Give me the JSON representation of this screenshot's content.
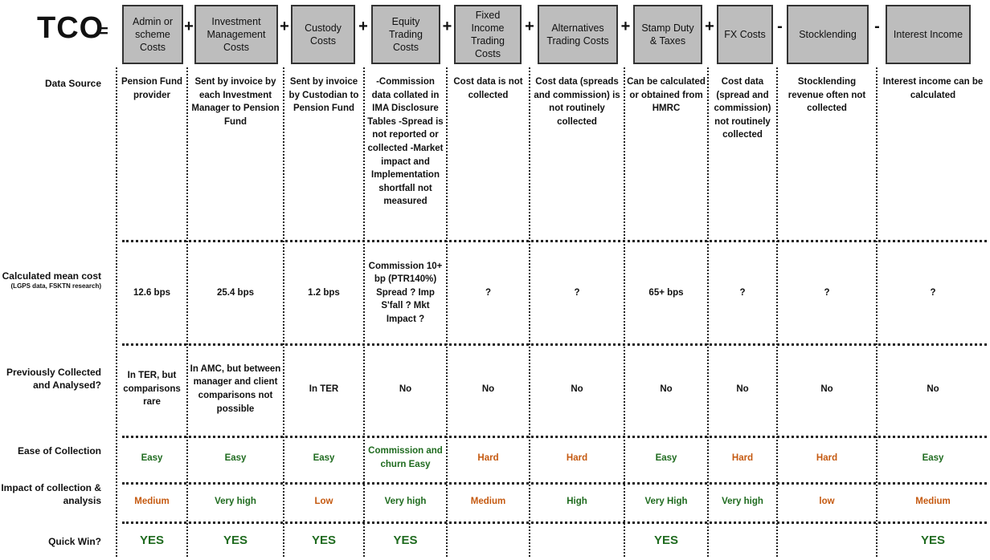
{
  "title": "TCO",
  "equals": "=",
  "columns": [
    {
      "header": "Admin or scheme Costs",
      "op_after": "+",
      "data_source": "Pension Fund provider",
      "mean_cost": "12.6 bps",
      "previously": "In TER, but comparisons rare",
      "ease": "Easy",
      "ease_color": "#1f6b1f",
      "impact": "Medium",
      "impact_color": "#c55a11",
      "quick_win": "YES"
    },
    {
      "header": "Investment Management Costs",
      "op_after": "+",
      "data_source": "Sent by invoice by each Investment Manager to Pension Fund",
      "mean_cost": "25.4 bps",
      "previously": "In AMC, but between manager and client comparisons not possible",
      "ease": "Easy",
      "ease_color": "#1f6b1f",
      "impact": "Very high",
      "impact_color": "#1f6b1f",
      "quick_win": "YES"
    },
    {
      "header": "Custody Costs",
      "op_after": "+",
      "data_source": "Sent by invoice by Custodian to Pension Fund",
      "mean_cost": "1.2 bps",
      "previously": "In TER",
      "ease": "Easy",
      "ease_color": "#1f6b1f",
      "impact": "Low",
      "impact_color": "#c55a11",
      "quick_win": "YES"
    },
    {
      "header": "Equity Trading Costs",
      "op_after": "+",
      "data_source": "-Commission data collated in IMA Disclosure Tables -Spread is not reported or collected -Market impact and Implementation shortfall not measured",
      "mean_cost": "Commission 10+ bp (PTR140%) Spread ? Imp S'fall ? Mkt Impact ?",
      "previously": "No",
      "ease": "Commission and churn Easy",
      "ease_color": "#1f6b1f",
      "impact": "Very high",
      "impact_color": "#1f6b1f",
      "quick_win": "YES"
    },
    {
      "header": "Fixed Income Trading Costs",
      "op_after": "+",
      "data_source": "Cost data is not collected",
      "mean_cost": "?",
      "previously": "No",
      "ease": "Hard",
      "ease_color": "#c55a11",
      "impact": "Medium",
      "impact_color": "#c55a11",
      "quick_win": ""
    },
    {
      "header": "Alternatives Trading Costs",
      "op_after": "+",
      "data_source": "Cost data (spreads and commission) is not routinely collected",
      "mean_cost": "?",
      "previously": "No",
      "ease": "Hard",
      "ease_color": "#c55a11",
      "impact": "High",
      "impact_color": "#1f6b1f",
      "quick_win": ""
    },
    {
      "header": "Stamp Duty & Taxes",
      "op_after": "+",
      "data_source": "Can be calculated or obtained from HMRC",
      "mean_cost": "65+ bps",
      "previously": "No",
      "ease": "Easy",
      "ease_color": "#1f6b1f",
      "impact": "Very High",
      "impact_color": "#1f6b1f",
      "quick_win": "YES"
    },
    {
      "header": "FX Costs",
      "op_after": "-",
      "data_source": "Cost data (spread and commission) not routinely collected",
      "mean_cost": "?",
      "previously": "No",
      "ease": "Hard",
      "ease_color": "#c55a11",
      "impact": "Very high",
      "impact_color": "#1f6b1f",
      "quick_win": ""
    },
    {
      "header": "Stocklending",
      "op_after": "-",
      "data_source": "Stocklending revenue often not collected",
      "mean_cost": "?",
      "previously": "No",
      "ease": "Hard",
      "ease_color": "#c55a11",
      "impact": "low",
      "impact_color": "#c55a11",
      "quick_win": ""
    },
    {
      "header": "Interest Income",
      "op_after": "",
      "data_source": "Interest income can be calculated",
      "mean_cost": "?",
      "previously": "No",
      "ease": "Easy",
      "ease_color": "#1f6b1f",
      "impact": "Medium",
      "impact_color": "#c55a11",
      "quick_win": "YES"
    }
  ],
  "row_labels": {
    "data_source": "Data Source",
    "mean_cost": "Calculated mean cost",
    "mean_cost_note": "(LGPS data, FSKTN research)",
    "previously": "Previously Collected and Analysed?",
    "ease": "Ease of Collection",
    "impact": "Impact of collection & analysis",
    "quick_win": "Quick Win?"
  }
}
